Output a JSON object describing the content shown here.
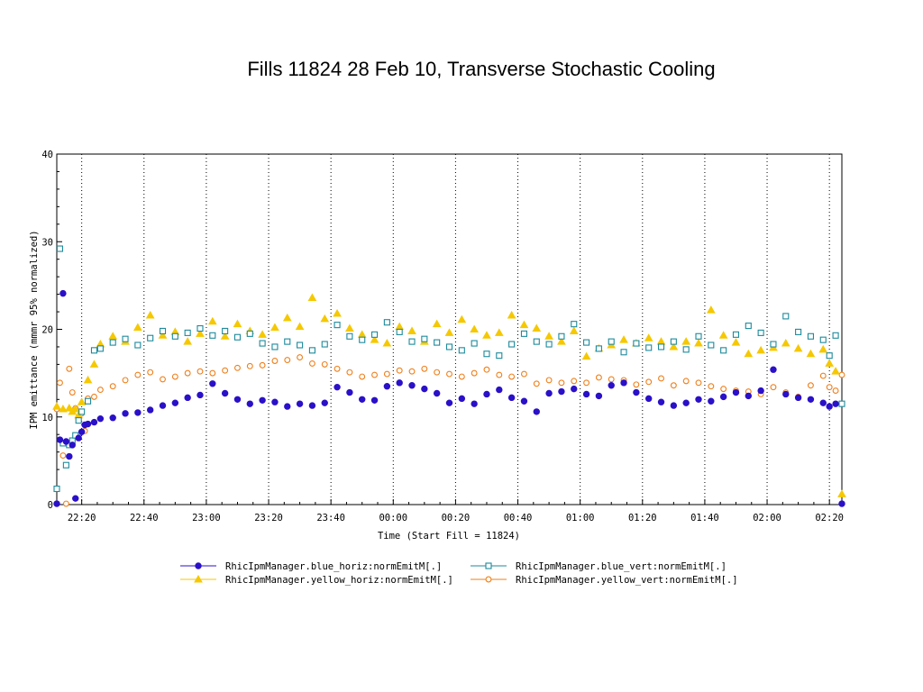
{
  "title": "Fills 11824 28 Feb 10, Transverse Stochastic Cooling",
  "chart_data": {
    "type": "scatter",
    "xlabel": "Time (Start Fill = 11824)",
    "ylabel": "IPM emittance (mmmr 95% normalized)",
    "ylim": [
      0,
      40
    ],
    "xlim": [
      "22:12",
      "02:24"
    ],
    "yticks": [
      "0",
      "10",
      "20",
      "30",
      "40"
    ],
    "xticks": [
      "22:20",
      "22:40",
      "23:00",
      "23:20",
      "23:40",
      "00:00",
      "00:20",
      "00:40",
      "01:00",
      "01:20",
      "01:40",
      "02:00",
      "02:20"
    ],
    "grid": "vertical dotted at major x ticks",
    "legend_position": "bottom",
    "series": [
      {
        "name": "RhicIpmManager.blue_horiz:normEmitM[.]",
        "color": "#2a10c8",
        "marker": "filled-circle",
        "points": [
          [
            "22:12",
            0.1
          ],
          [
            "22:13",
            7.4
          ],
          [
            "22:14",
            24.1
          ],
          [
            "22:15",
            7.2
          ],
          [
            "22:16",
            5.5
          ],
          [
            "22:17",
            6.8
          ],
          [
            "22:18",
            0.7
          ],
          [
            "22:19",
            7.6
          ],
          [
            "22:20",
            8.3
          ],
          [
            "22:21",
            9.1
          ],
          [
            "22:22",
            9.2
          ],
          [
            "22:24",
            9.4
          ],
          [
            "22:26",
            9.8
          ],
          [
            "22:30",
            9.9
          ],
          [
            "22:34",
            10.4
          ],
          [
            "22:38",
            10.5
          ],
          [
            "22:42",
            10.8
          ],
          [
            "22:46",
            11.3
          ],
          [
            "22:50",
            11.6
          ],
          [
            "22:54",
            12.2
          ],
          [
            "22:58",
            12.5
          ],
          [
            "23:02",
            13.8
          ],
          [
            "23:06",
            12.7
          ],
          [
            "23:10",
            12.0
          ],
          [
            "23:14",
            11.5
          ],
          [
            "23:18",
            11.9
          ],
          [
            "23:22",
            11.7
          ],
          [
            "23:26",
            11.2
          ],
          [
            "23:30",
            11.5
          ],
          [
            "23:34",
            11.3
          ],
          [
            "23:38",
            11.6
          ],
          [
            "23:42",
            13.4
          ],
          [
            "23:46",
            12.8
          ],
          [
            "23:50",
            12.0
          ],
          [
            "23:54",
            11.9
          ],
          [
            "23:58",
            13.5
          ],
          [
            "00:02",
            13.9
          ],
          [
            "00:06",
            13.6
          ],
          [
            "00:10",
            13.2
          ],
          [
            "00:14",
            12.7
          ],
          [
            "00:18",
            11.6
          ],
          [
            "00:22",
            12.1
          ],
          [
            "00:26",
            11.5
          ],
          [
            "00:30",
            12.6
          ],
          [
            "00:34",
            13.1
          ],
          [
            "00:38",
            12.2
          ],
          [
            "00:42",
            11.8
          ],
          [
            "00:46",
            10.6
          ],
          [
            "00:50",
            12.7
          ],
          [
            "00:54",
            12.9
          ],
          [
            "00:58",
            13.2
          ],
          [
            "01:02",
            12.6
          ],
          [
            "01:06",
            12.4
          ],
          [
            "01:10",
            13.6
          ],
          [
            "01:14",
            13.9
          ],
          [
            "01:18",
            12.8
          ],
          [
            "01:22",
            12.1
          ],
          [
            "01:26",
            11.7
          ],
          [
            "01:30",
            11.3
          ],
          [
            "01:34",
            11.6
          ],
          [
            "01:38",
            12.0
          ],
          [
            "01:42",
            11.8
          ],
          [
            "01:46",
            12.3
          ],
          [
            "01:50",
            12.8
          ],
          [
            "01:54",
            12.4
          ],
          [
            "01:58",
            13.0
          ],
          [
            "02:02",
            15.4
          ],
          [
            "02:06",
            12.6
          ],
          [
            "02:10",
            12.2
          ],
          [
            "02:14",
            12.0
          ],
          [
            "02:18",
            11.6
          ],
          [
            "02:20",
            11.2
          ],
          [
            "02:22",
            11.5
          ],
          [
            "02:24",
            0.1
          ]
        ]
      },
      {
        "name": "RhicIpmManager.blue_vert:normEmitM[.]",
        "color": "#1d8a9c",
        "marker": "open-square",
        "points": [
          [
            "22:12",
            1.8
          ],
          [
            "22:13",
            29.2
          ],
          [
            "22:14",
            7.0
          ],
          [
            "22:15",
            4.5
          ],
          [
            "22:16",
            6.8
          ],
          [
            "22:17",
            7.3
          ],
          [
            "22:18",
            7.9
          ],
          [
            "22:19",
            9.6
          ],
          [
            "22:20",
            10.6
          ],
          [
            "22:22",
            11.8
          ],
          [
            "22:24",
            17.6
          ],
          [
            "22:26",
            17.8
          ],
          [
            "22:30",
            18.5
          ],
          [
            "22:34",
            18.9
          ],
          [
            "22:38",
            18.2
          ],
          [
            "22:42",
            19.0
          ],
          [
            "22:46",
            19.8
          ],
          [
            "22:50",
            19.2
          ],
          [
            "22:54",
            19.6
          ],
          [
            "22:58",
            20.1
          ],
          [
            "23:02",
            19.3
          ],
          [
            "23:06",
            19.8
          ],
          [
            "23:10",
            19.1
          ],
          [
            "23:14",
            19.5
          ],
          [
            "23:18",
            18.4
          ],
          [
            "23:22",
            18.0
          ],
          [
            "23:26",
            18.6
          ],
          [
            "23:30",
            18.2
          ],
          [
            "23:34",
            17.6
          ],
          [
            "23:38",
            18.3
          ],
          [
            "23:42",
            20.5
          ],
          [
            "23:46",
            19.2
          ],
          [
            "23:50",
            18.8
          ],
          [
            "23:54",
            19.4
          ],
          [
            "23:58",
            20.8
          ],
          [
            "00:02",
            19.7
          ],
          [
            "00:06",
            18.6
          ],
          [
            "00:10",
            18.9
          ],
          [
            "00:14",
            18.5
          ],
          [
            "00:18",
            18.0
          ],
          [
            "00:22",
            17.6
          ],
          [
            "00:26",
            18.4
          ],
          [
            "00:30",
            17.2
          ],
          [
            "00:34",
            17.0
          ],
          [
            "00:38",
            18.3
          ],
          [
            "00:42",
            19.5
          ],
          [
            "00:46",
            18.6
          ],
          [
            "00:50",
            18.3
          ],
          [
            "00:54",
            19.2
          ],
          [
            "00:58",
            20.6
          ],
          [
            "01:02",
            18.5
          ],
          [
            "01:06",
            17.8
          ],
          [
            "01:10",
            18.6
          ],
          [
            "01:14",
            17.4
          ],
          [
            "01:18",
            18.4
          ],
          [
            "01:22",
            17.9
          ],
          [
            "01:26",
            18.0
          ],
          [
            "01:30",
            18.6
          ],
          [
            "01:34",
            17.7
          ],
          [
            "01:38",
            19.2
          ],
          [
            "01:42",
            18.2
          ],
          [
            "01:46",
            17.6
          ],
          [
            "01:50",
            19.4
          ],
          [
            "01:54",
            20.4
          ],
          [
            "01:58",
            19.6
          ],
          [
            "02:02",
            18.3
          ],
          [
            "02:06",
            21.5
          ],
          [
            "02:10",
            19.7
          ],
          [
            "02:14",
            19.2
          ],
          [
            "02:18",
            18.8
          ],
          [
            "02:20",
            17.0
          ],
          [
            "02:22",
            19.3
          ],
          [
            "02:24",
            11.5
          ]
        ]
      },
      {
        "name": "RhicIpmManager.yellow_horiz:normEmitM[.]",
        "color": "#f5c800",
        "marker": "filled-triangle",
        "points": [
          [
            "22:12",
            11.2
          ],
          [
            "22:14",
            10.9
          ],
          [
            "22:16",
            11.0
          ],
          [
            "22:17",
            10.6
          ],
          [
            "22:18",
            10.9
          ],
          [
            "22:19",
            10.2
          ],
          [
            "22:20",
            11.7
          ],
          [
            "22:22",
            14.2
          ],
          [
            "22:24",
            16.0
          ],
          [
            "22:26",
            18.3
          ],
          [
            "22:30",
            19.2
          ],
          [
            "22:34",
            18.6
          ],
          [
            "22:38",
            20.2
          ],
          [
            "22:42",
            21.6
          ],
          [
            "22:46",
            19.3
          ],
          [
            "22:50",
            19.7
          ],
          [
            "22:54",
            18.6
          ],
          [
            "22:58",
            19.5
          ],
          [
            "23:02",
            20.9
          ],
          [
            "23:06",
            19.2
          ],
          [
            "23:10",
            20.6
          ],
          [
            "23:14",
            19.8
          ],
          [
            "23:18",
            19.4
          ],
          [
            "23:22",
            20.2
          ],
          [
            "23:26",
            21.3
          ],
          [
            "23:30",
            20.3
          ],
          [
            "23:34",
            23.6
          ],
          [
            "23:38",
            21.2
          ],
          [
            "23:42",
            21.8
          ],
          [
            "23:46",
            20.1
          ],
          [
            "23:50",
            19.4
          ],
          [
            "23:54",
            18.8
          ],
          [
            "23:58",
            18.4
          ],
          [
            "00:02",
            20.3
          ],
          [
            "00:06",
            19.8
          ],
          [
            "00:10",
            18.6
          ],
          [
            "00:14",
            20.6
          ],
          [
            "00:18",
            19.6
          ],
          [
            "00:22",
            21.1
          ],
          [
            "00:26",
            20.0
          ],
          [
            "00:30",
            19.3
          ],
          [
            "00:34",
            19.6
          ],
          [
            "00:38",
            21.6
          ],
          [
            "00:42",
            20.5
          ],
          [
            "00:46",
            20.1
          ],
          [
            "00:50",
            19.2
          ],
          [
            "00:54",
            18.6
          ],
          [
            "00:58",
            19.8
          ],
          [
            "01:02",
            16.9
          ],
          [
            "01:06",
            17.8
          ],
          [
            "01:10",
            18.2
          ],
          [
            "01:14",
            18.8
          ],
          [
            "01:18",
            18.4
          ],
          [
            "01:22",
            19.0
          ],
          [
            "01:26",
            18.6
          ],
          [
            "01:30",
            18.0
          ],
          [
            "01:34",
            18.6
          ],
          [
            "01:38",
            18.4
          ],
          [
            "01:42",
            22.2
          ],
          [
            "01:46",
            19.3
          ],
          [
            "01:50",
            18.5
          ],
          [
            "01:54",
            17.2
          ],
          [
            "01:58",
            17.6
          ],
          [
            "02:02",
            17.9
          ],
          [
            "02:06",
            18.4
          ],
          [
            "02:10",
            17.8
          ],
          [
            "02:14",
            17.2
          ],
          [
            "02:18",
            17.7
          ],
          [
            "02:20",
            16.1
          ],
          [
            "02:22",
            15.2
          ],
          [
            "02:24",
            1.2
          ]
        ]
      },
      {
        "name": "RhicIpmManager.yellow_vert:normEmitM[.]",
        "color": "#ef7f1a",
        "marker": "open-circle",
        "points": [
          [
            "22:12",
            10.9
          ],
          [
            "22:13",
            13.9
          ],
          [
            "22:14",
            5.6
          ],
          [
            "22:15",
            0.1
          ],
          [
            "22:16",
            15.5
          ],
          [
            "22:17",
            12.8
          ],
          [
            "22:18",
            11.0
          ],
          [
            "22:19",
            9.8
          ],
          [
            "22:20",
            10.4
          ],
          [
            "22:21",
            8.4
          ],
          [
            "22:22",
            12.1
          ],
          [
            "22:24",
            12.3
          ],
          [
            "22:26",
            13.1
          ],
          [
            "22:30",
            13.5
          ],
          [
            "22:34",
            14.2
          ],
          [
            "22:38",
            14.8
          ],
          [
            "22:42",
            15.1
          ],
          [
            "22:46",
            14.3
          ],
          [
            "22:50",
            14.6
          ],
          [
            "22:54",
            15.0
          ],
          [
            "22:58",
            15.2
          ],
          [
            "23:02",
            15.0
          ],
          [
            "23:06",
            15.3
          ],
          [
            "23:10",
            15.6
          ],
          [
            "23:14",
            15.8
          ],
          [
            "23:18",
            15.9
          ],
          [
            "23:22",
            16.4
          ],
          [
            "23:26",
            16.5
          ],
          [
            "23:30",
            16.8
          ],
          [
            "23:34",
            16.1
          ],
          [
            "23:38",
            16.0
          ],
          [
            "23:42",
            15.5
          ],
          [
            "23:46",
            15.1
          ],
          [
            "23:50",
            14.6
          ],
          [
            "23:54",
            14.8
          ],
          [
            "23:58",
            14.9
          ],
          [
            "00:02",
            15.3
          ],
          [
            "00:06",
            15.2
          ],
          [
            "00:10",
            15.5
          ],
          [
            "00:14",
            15.1
          ],
          [
            "00:18",
            14.9
          ],
          [
            "00:22",
            14.6
          ],
          [
            "00:26",
            15.0
          ],
          [
            "00:30",
            15.4
          ],
          [
            "00:34",
            14.8
          ],
          [
            "00:38",
            14.6
          ],
          [
            "00:42",
            14.9
          ],
          [
            "00:46",
            13.8
          ],
          [
            "00:50",
            14.2
          ],
          [
            "00:54",
            13.9
          ],
          [
            "00:58",
            14.1
          ],
          [
            "01:02",
            13.9
          ],
          [
            "01:06",
            14.5
          ],
          [
            "01:10",
            14.3
          ],
          [
            "01:14",
            14.2
          ],
          [
            "01:18",
            13.7
          ],
          [
            "01:22",
            14.0
          ],
          [
            "01:26",
            14.4
          ],
          [
            "01:30",
            13.6
          ],
          [
            "01:34",
            14.1
          ],
          [
            "01:38",
            13.9
          ],
          [
            "01:42",
            13.5
          ],
          [
            "01:46",
            13.2
          ],
          [
            "01:50",
            13.0
          ],
          [
            "01:54",
            12.9
          ],
          [
            "01:58",
            12.6
          ],
          [
            "02:02",
            13.4
          ],
          [
            "02:06",
            12.8
          ],
          [
            "02:10",
            12.3
          ],
          [
            "02:14",
            13.6
          ],
          [
            "02:18",
            14.7
          ],
          [
            "02:20",
            13.4
          ],
          [
            "02:22",
            13.0
          ],
          [
            "02:24",
            14.8
          ]
        ]
      }
    ]
  }
}
